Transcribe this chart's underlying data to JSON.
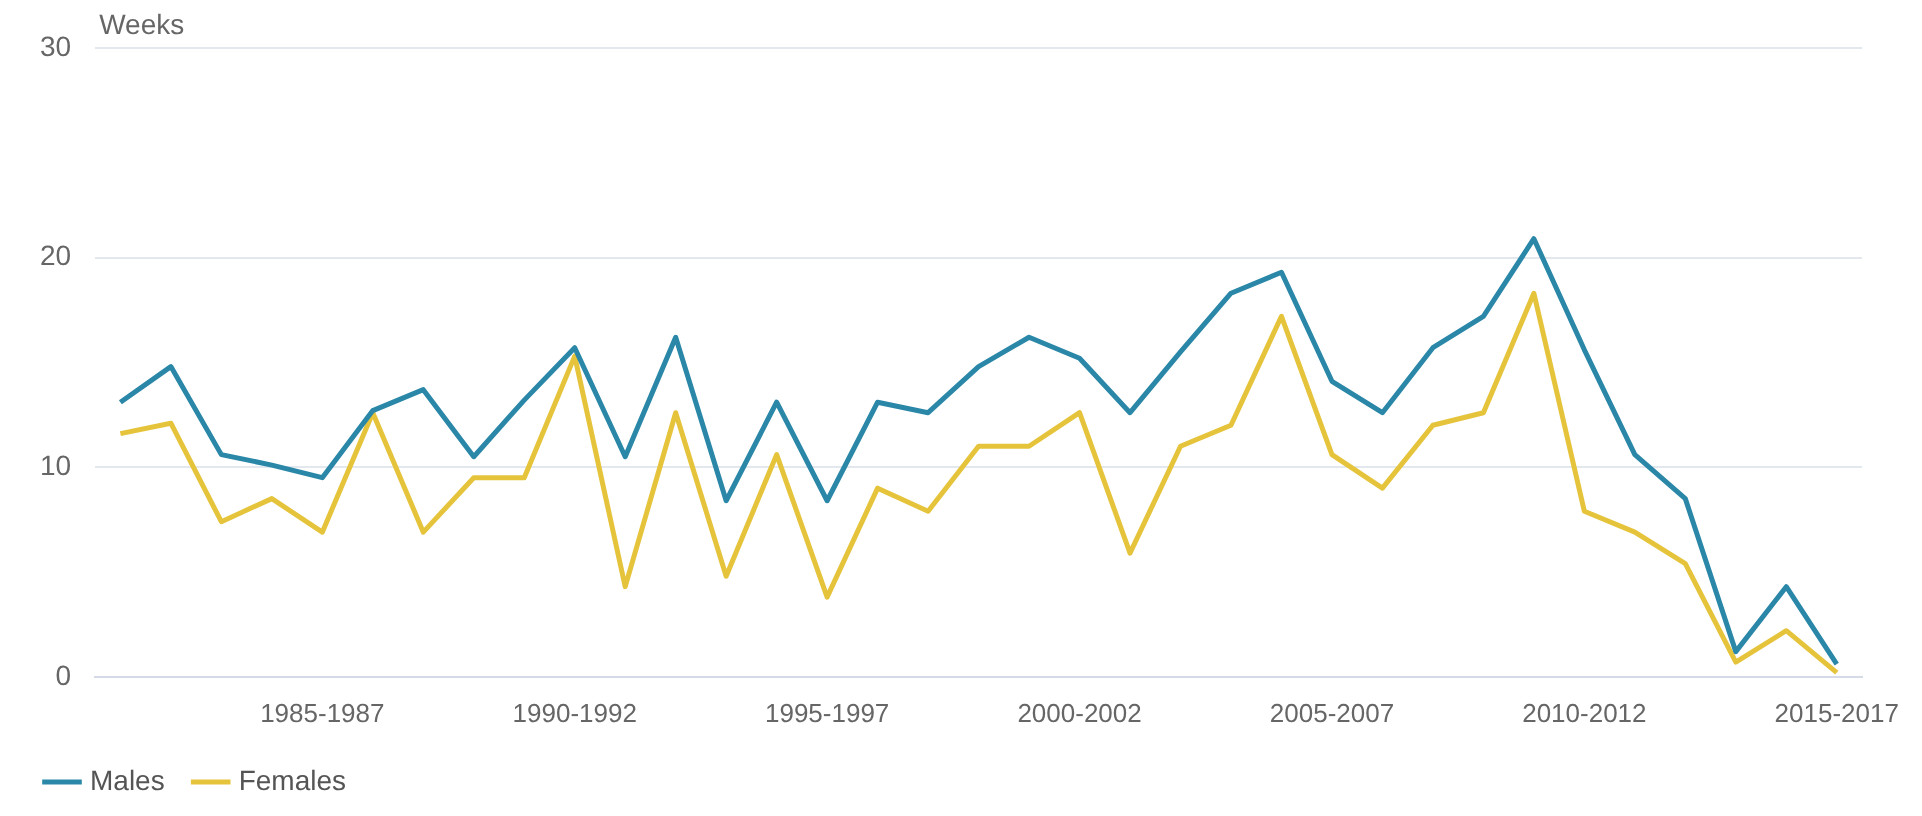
{
  "chart_data": {
    "type": "line",
    "ylabel": "Weeks",
    "categories": [
      null,
      null,
      null,
      null,
      "1985-1987",
      null,
      null,
      null,
      null,
      "1990-1992",
      null,
      null,
      null,
      null,
      "1995-1997",
      null,
      null,
      null,
      null,
      "2000-2002",
      null,
      null,
      null,
      null,
      "2005-2007",
      null,
      null,
      null,
      null,
      "2010-2012",
      null,
      null,
      null,
      null,
      "2015-2017"
    ],
    "series": [
      {
        "name": "Males",
        "color": "#2a87a8",
        "values": [
          13.1,
          14.8,
          10.6,
          10.1,
          9.5,
          12.7,
          13.7,
          10.5,
          13.2,
          15.7,
          10.5,
          16.2,
          8.4,
          13.1,
          8.4,
          13.1,
          12.6,
          14.8,
          16.2,
          15.2,
          12.6,
          15.5,
          18.3,
          19.3,
          14.1,
          12.6,
          15.7,
          17.2,
          20.9,
          15.6,
          10.6,
          8.5,
          1.2,
          4.3,
          0.6
        ]
      },
      {
        "name": "Females",
        "color": "#e5c43c",
        "values": [
          11.6,
          12.1,
          7.4,
          8.5,
          6.9,
          12.6,
          6.9,
          9.5,
          9.5,
          15.3,
          4.3,
          12.6,
          4.8,
          10.6,
          3.8,
          9.0,
          7.9,
          11.0,
          11.0,
          12.6,
          5.9,
          11.0,
          12.0,
          17.2,
          10.6,
          9.0,
          12.0,
          12.6,
          18.3,
          7.9,
          6.9,
          5.4,
          0.7,
          2.2,
          0.2
        ]
      }
    ],
    "ylim": [
      0,
      30
    ],
    "yticks": [
      0,
      10,
      20,
      30
    ],
    "grid": "y",
    "legend": "bottom left",
    "marker": "none",
    "line_style": "solid"
  }
}
